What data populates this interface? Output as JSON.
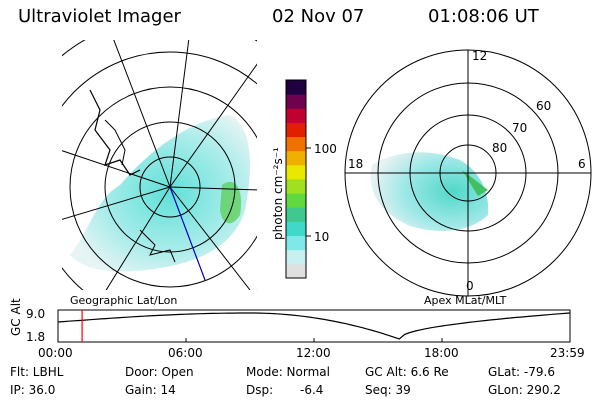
{
  "header": {
    "instrument": "Ultraviolet Imager",
    "date": "02 Nov 07",
    "time": "01:08:06 UT"
  },
  "left_panel": {
    "label": "Geographic Lat/Lon"
  },
  "right_panel": {
    "label": "Apex MLat/MLT",
    "mlt_labels": {
      "top": "12",
      "left": "18",
      "right": "6",
      "bottom": "0"
    },
    "lat_labels": [
      "60",
      "70",
      "80"
    ]
  },
  "colorbar": {
    "unit_label": "photon cm⁻²s⁻¹",
    "tick_labels": [
      "100",
      "10"
    ],
    "scale": "log",
    "colors": [
      "#e0e0e0",
      "#c8f0f0",
      "#80e8e8",
      "#40d8c8",
      "#40c890",
      "#60d840",
      "#a0e020",
      "#e8e800",
      "#f0b000",
      "#f07000",
      "#e02000",
      "#c00030",
      "#700050",
      "#200040"
    ]
  },
  "altitude_plot": {
    "ylabel": "GC Alt",
    "y_ticks": [
      "9.0",
      "1.8"
    ],
    "x_ticks": [
      "00:00",
      "06:00",
      "12:00",
      "18:00",
      "23:59"
    ],
    "current_time_marker_hours": 1.13,
    "marker_color": "#ff0000"
  },
  "footer": {
    "flt": "Flt: LBHL",
    "ip": "IP: 36.0",
    "door": "Door: Open",
    "gain": "Gain: 14",
    "mode": "Mode: Normal",
    "dsp_label": "Dsp:",
    "dsp_value": "-6.4",
    "gc_alt": "GC Alt: 6.6 Re",
    "seq": "Seq: 39",
    "glat": "GLat: -79.6",
    "glon": "GLon: 290.2"
  }
}
